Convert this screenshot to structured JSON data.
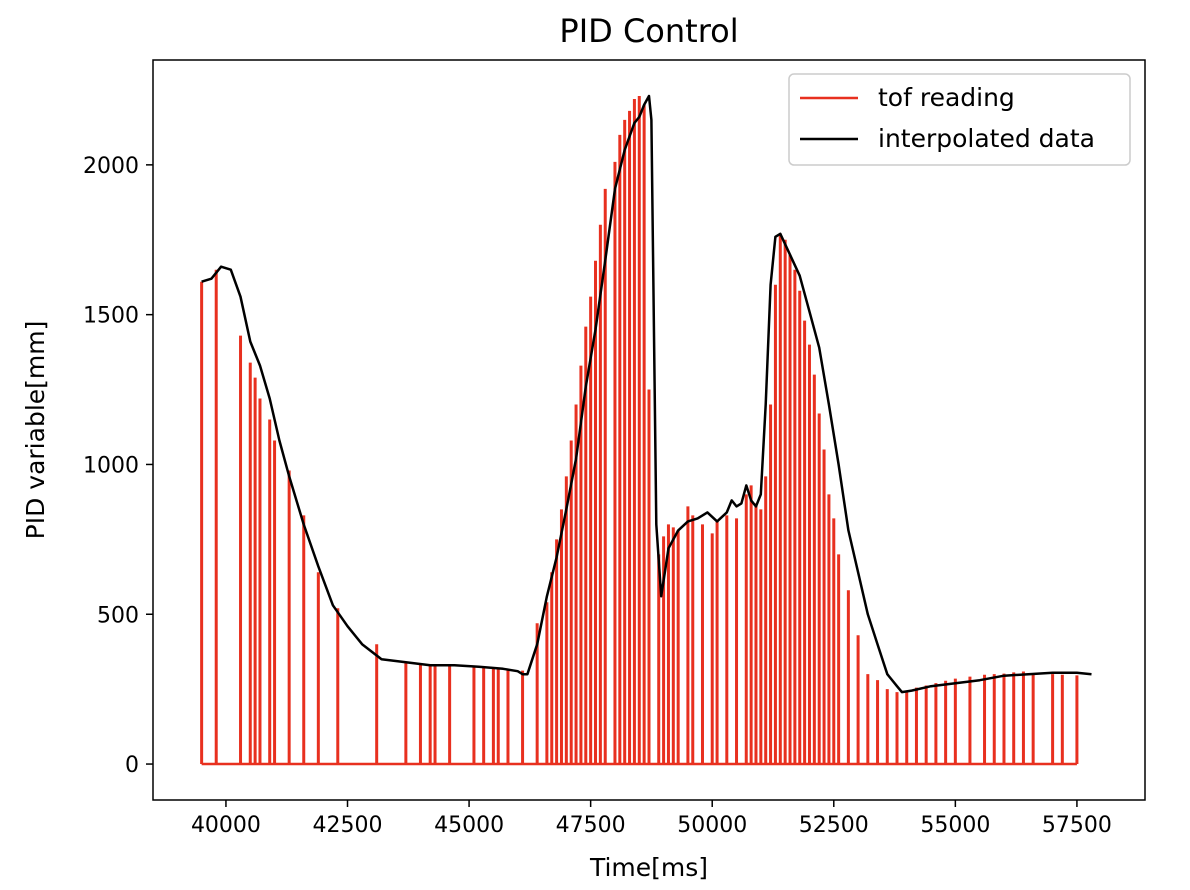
{
  "chart_data": {
    "type": "line",
    "title": "PID Control",
    "xlabel": "Time[ms]",
    "ylabel": "PID variable[mm]",
    "xlim": [
      38500,
      58900
    ],
    "ylim": [
      -120,
      2350
    ],
    "xticks": [
      40000,
      42500,
      45000,
      47500,
      50000,
      52500,
      55000,
      57500
    ],
    "yticks": [
      0,
      500,
      1000,
      1500,
      2000
    ],
    "grid": false,
    "legend_position": "top-right",
    "series": [
      {
        "name": "tof reading",
        "color": "#e8301f",
        "style": "stem",
        "x": [
          39500,
          39800,
          40300,
          40500,
          40600,
          40700,
          40900,
          41000,
          41300,
          41600,
          41900,
          42300,
          43100,
          43700,
          44000,
          44200,
          44300,
          44600,
          45100,
          45300,
          45500,
          45600,
          45800,
          46100,
          46400,
          46600,
          46700,
          46800,
          46900,
          47000,
          47100,
          47200,
          47300,
          47400,
          47500,
          47600,
          47700,
          47800,
          48000,
          48100,
          48200,
          48300,
          48400,
          48500,
          48600,
          48700,
          48900,
          49000,
          49100,
          49200,
          49300,
          49500,
          49600,
          49800,
          50000,
          50100,
          50300,
          50500,
          50700,
          50800,
          50900,
          51000,
          51100,
          51200,
          51300,
          51400,
          51500,
          51600,
          51700,
          51800,
          51900,
          52000,
          52100,
          52200,
          52300,
          52400,
          52500,
          52600,
          52800,
          53000,
          53200,
          53400,
          53600,
          53800,
          54000,
          54200,
          54400,
          54600,
          54800,
          55000,
          55300,
          55600,
          55800,
          56000,
          56200,
          56400,
          56600,
          57000,
          57200,
          57500
        ],
        "y": [
          1610,
          1650,
          1430,
          1340,
          1290,
          1220,
          1150,
          1080,
          980,
          830,
          640,
          520,
          400,
          340,
          335,
          330,
          330,
          328,
          325,
          323,
          320,
          318,
          316,
          312,
          470,
          540,
          640,
          750,
          850,
          960,
          1080,
          1200,
          1330,
          1460,
          1560,
          1680,
          1800,
          1920,
          2010,
          2100,
          2150,
          2180,
          2220,
          2230,
          2200,
          1250,
          700,
          760,
          800,
          790,
          780,
          860,
          830,
          800,
          770,
          810,
          830,
          820,
          900,
          930,
          870,
          850,
          960,
          1200,
          1600,
          1770,
          1750,
          1700,
          1650,
          1580,
          1480,
          1400,
          1300,
          1170,
          1050,
          900,
          820,
          700,
          580,
          430,
          300,
          280,
          250,
          240,
          245,
          255,
          262,
          270,
          278,
          285,
          292,
          298,
          300,
          302,
          306,
          309,
          303,
          300,
          298,
          296
        ]
      },
      {
        "name": "interpolated data",
        "color": "#000000",
        "style": "line",
        "x": [
          39500,
          39700,
          39900,
          40100,
          40300,
          40500,
          40700,
          40900,
          41100,
          41300,
          41600,
          41900,
          42200,
          42500,
          42800,
          43200,
          43700,
          44200,
          44700,
          45200,
          45700,
          46000,
          46100,
          46200,
          46400,
          46600,
          46800,
          47000,
          47200,
          47400,
          47600,
          47800,
          48000,
          48200,
          48400,
          48500,
          48600,
          48700,
          48750,
          48850,
          48950,
          49100,
          49300,
          49500,
          49700,
          49900,
          50100,
          50300,
          50400,
          50500,
          50600,
          50700,
          50800,
          50900,
          51000,
          51100,
          51200,
          51300,
          51400,
          51600,
          51800,
          52000,
          52200,
          52400,
          52600,
          52800,
          53000,
          53200,
          53400,
          53600,
          53800,
          53900,
          54100,
          54500,
          55000,
          55500,
          56000,
          56500,
          57000,
          57500,
          57800
        ],
        "y": [
          1610,
          1620,
          1660,
          1650,
          1560,
          1410,
          1330,
          1220,
          1080,
          960,
          800,
          660,
          530,
          460,
          400,
          350,
          340,
          330,
          330,
          325,
          318,
          310,
          300,
          300,
          400,
          560,
          690,
          850,
          1020,
          1260,
          1450,
          1680,
          1920,
          2050,
          2140,
          2160,
          2200,
          2230,
          2150,
          800,
          560,
          720,
          780,
          810,
          820,
          840,
          810,
          840,
          880,
          860,
          870,
          930,
          880,
          860,
          900,
          1200,
          1600,
          1760,
          1770,
          1700,
          1630,
          1510,
          1390,
          1200,
          1000,
          780,
          640,
          500,
          400,
          300,
          260,
          240,
          245,
          260,
          270,
          280,
          295,
          300,
          305,
          305,
          300
        ]
      }
    ],
    "legend": [
      "tof reading",
      "interpolated data"
    ]
  }
}
